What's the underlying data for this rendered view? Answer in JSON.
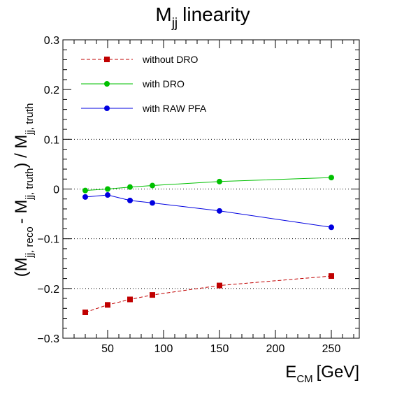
{
  "chart_data": {
    "type": "line",
    "title": {
      "main": "M",
      "sub": "jj",
      "rest": "linearity"
    },
    "xlabel": {
      "main": "E",
      "sub": "CM",
      "rest": "[GeV]"
    },
    "ylabel": {
      "p1": "(M",
      "s1": "jj, reco",
      "p2": "- M",
      "s2": "jj, truth",
      "p3": ") / M",
      "s3": "jj, truth"
    },
    "xlim": [
      10,
      275
    ],
    "ylim": [
      -0.3,
      0.3
    ],
    "x_ticks": [
      50,
      100,
      150,
      200,
      250
    ],
    "x_tick_labels": [
      "50",
      "100",
      "150",
      "200",
      "250"
    ],
    "y_ticks": [
      -0.3,
      -0.2,
      -0.1,
      0,
      0.1,
      0.2,
      0.3
    ],
    "y_tick_labels": [
      "−0.3",
      "−0.2",
      "−0.1",
      "0",
      "0.1",
      "0.2",
      "0.3"
    ],
    "grid_y": [
      -0.2,
      -0.1,
      0,
      0.1
    ],
    "legend_position": "top-left",
    "series": [
      {
        "name": "without DRO",
        "color": "#c00000",
        "marker": "square",
        "dashed": true,
        "x": [
          30,
          50,
          70,
          90,
          150,
          250
        ],
        "y": [
          -0.248,
          -0.233,
          -0.222,
          -0.213,
          -0.194,
          -0.175
        ]
      },
      {
        "name": "with DRO",
        "color": "#00c000",
        "marker": "circle",
        "dashed": false,
        "x": [
          30,
          50,
          70,
          90,
          150,
          250
        ],
        "y": [
          -0.003,
          0.0,
          0.004,
          0.007,
          0.015,
          0.023
        ]
      },
      {
        "name": "with RAW PFA",
        "color": "#0000e0",
        "marker": "circle",
        "dashed": false,
        "x": [
          30,
          50,
          70,
          90,
          150,
          250
        ],
        "y": [
          -0.016,
          -0.012,
          -0.023,
          -0.028,
          -0.044,
          -0.077
        ]
      }
    ]
  }
}
